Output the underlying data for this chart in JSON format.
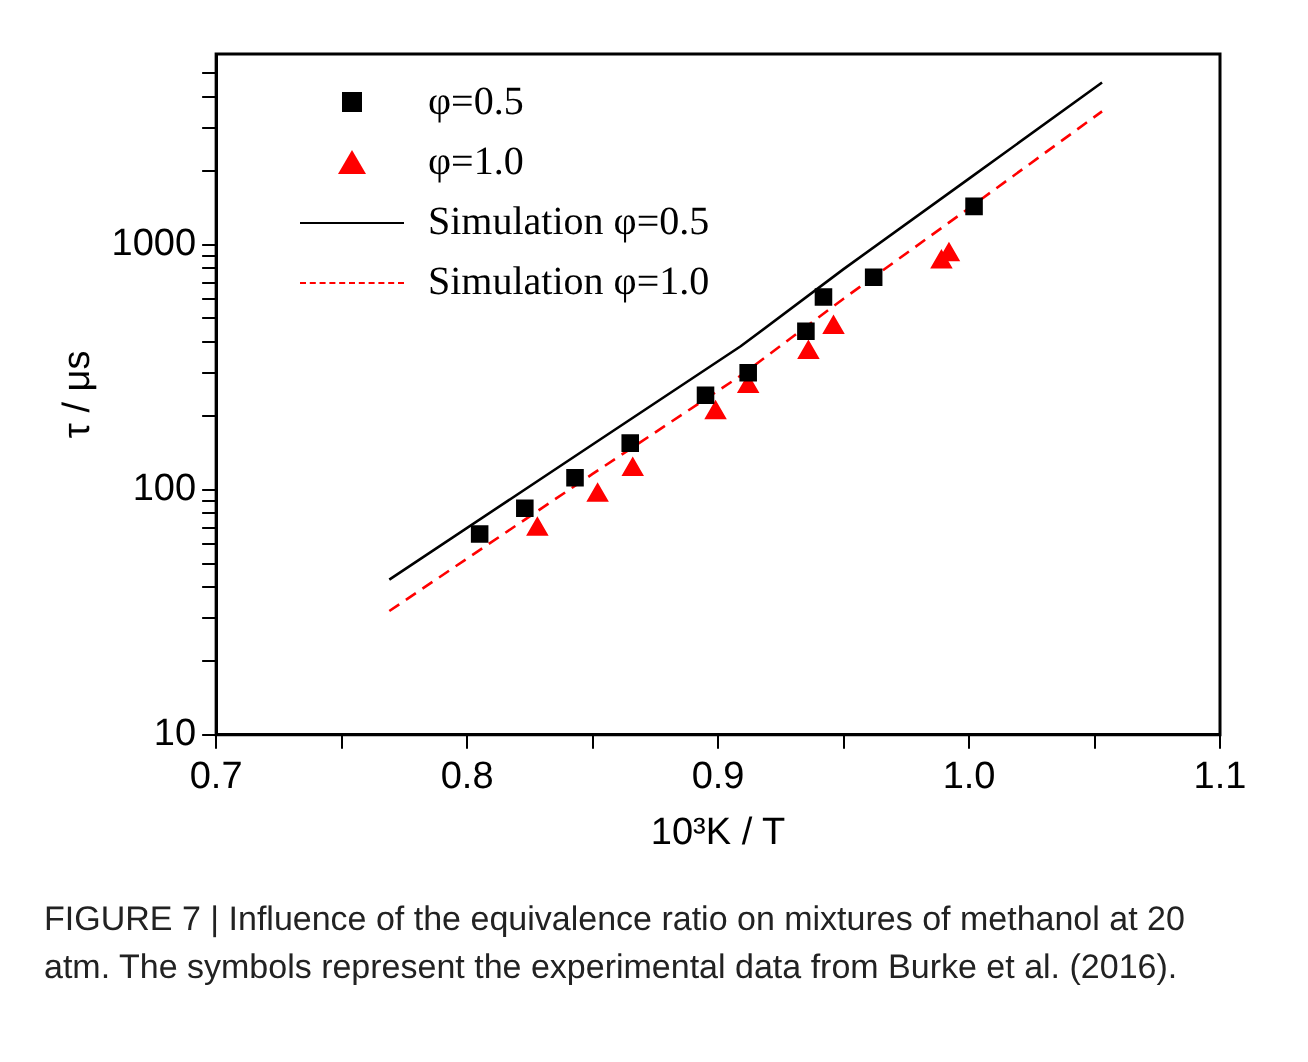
{
  "chart_data": {
    "type": "scatter",
    "xlabel": "10³K / T",
    "ylabel": "τ / μs",
    "series": [
      {
        "name": "φ=0.5",
        "marker": "square",
        "color": "#000000",
        "x": [
          0.805,
          0.823,
          0.843,
          0.865,
          0.895,
          0.912,
          0.935,
          0.942,
          0.962,
          1.002
        ],
        "values": [
          66,
          84,
          112,
          155,
          243,
          300,
          443,
          612,
          737,
          1433
        ]
      },
      {
        "name": "φ=1.0",
        "marker": "triangle",
        "color": "#ff0000",
        "x": [
          0.828,
          0.852,
          0.866,
          0.899,
          0.912,
          0.936,
          0.946,
          0.989,
          0.992
        ],
        "values": [
          69,
          95,
          121,
          206,
          264,
          363,
          459,
          850,
          910
        ]
      },
      {
        "name": "Simulation  φ=0.5",
        "type": "line",
        "marker": "none",
        "line_style": "solid",
        "color": "#000000",
        "x": [
          0.769,
          0.85,
          0.909,
          0.95,
          1.0,
          1.053
        ],
        "values": [
          43,
          153,
          385,
          795,
          1860,
          4590
        ]
      },
      {
        "name": "Simulation  φ=1.0",
        "type": "line",
        "marker": "none",
        "line_style": "dashed",
        "color": "#ff0000",
        "x": [
          0.769,
          0.85,
          0.909,
          0.95,
          1.0,
          1.053
        ],
        "values": [
          32,
          116,
          292,
          602,
          1410,
          3500
        ]
      }
    ],
    "log": "y",
    "xlim": [
      0.7,
      1.1
    ],
    "ylim": [
      10,
      6000
    ],
    "xticks": [
      0.7,
      {
        "value": 0.75,
        "label": null
      },
      0.8,
      {
        "value": 0.85,
        "label": null
      },
      0.9,
      {
        "value": 0.95,
        "label": null
      },
      {
        "value": 1,
        "label": "1.0"
      },
      {
        "value": 1.05,
        "label": null
      },
      1.1
    ],
    "yticks": [
      10,
      {
        "value": 20,
        "label": null
      },
      {
        "value": 30,
        "label": null
      },
      {
        "value": 40,
        "label": null
      },
      {
        "value": 50,
        "label": null
      },
      {
        "value": 60,
        "label": null
      },
      {
        "value": 70,
        "label": null
      },
      {
        "value": 80,
        "label": null
      },
      {
        "value": 90,
        "label": null
      },
      100,
      {
        "value": 200,
        "label": null
      },
      {
        "value": 300,
        "label": null
      },
      {
        "value": 400,
        "label": null
      },
      {
        "value": 500,
        "label": null
      },
      {
        "value": 600,
        "label": null
      },
      {
        "value": 700,
        "label": null
      },
      {
        "value": 800,
        "label": null
      },
      {
        "value": 900,
        "label": null
      },
      1000,
      {
        "value": 2000,
        "label": null
      },
      {
        "value": 3000,
        "label": null
      },
      {
        "value": 4000,
        "label": null
      },
      {
        "value": 5000,
        "label": null
      }
    ],
    "grid": false,
    "legend": "top left",
    "annotations": [
      "FIGURE 7 | Influence of the equivalence ratio on mixtures of methanol at 20 atm. The symbols represent the experimental data from Burke et al. (2016)."
    ]
  }
}
